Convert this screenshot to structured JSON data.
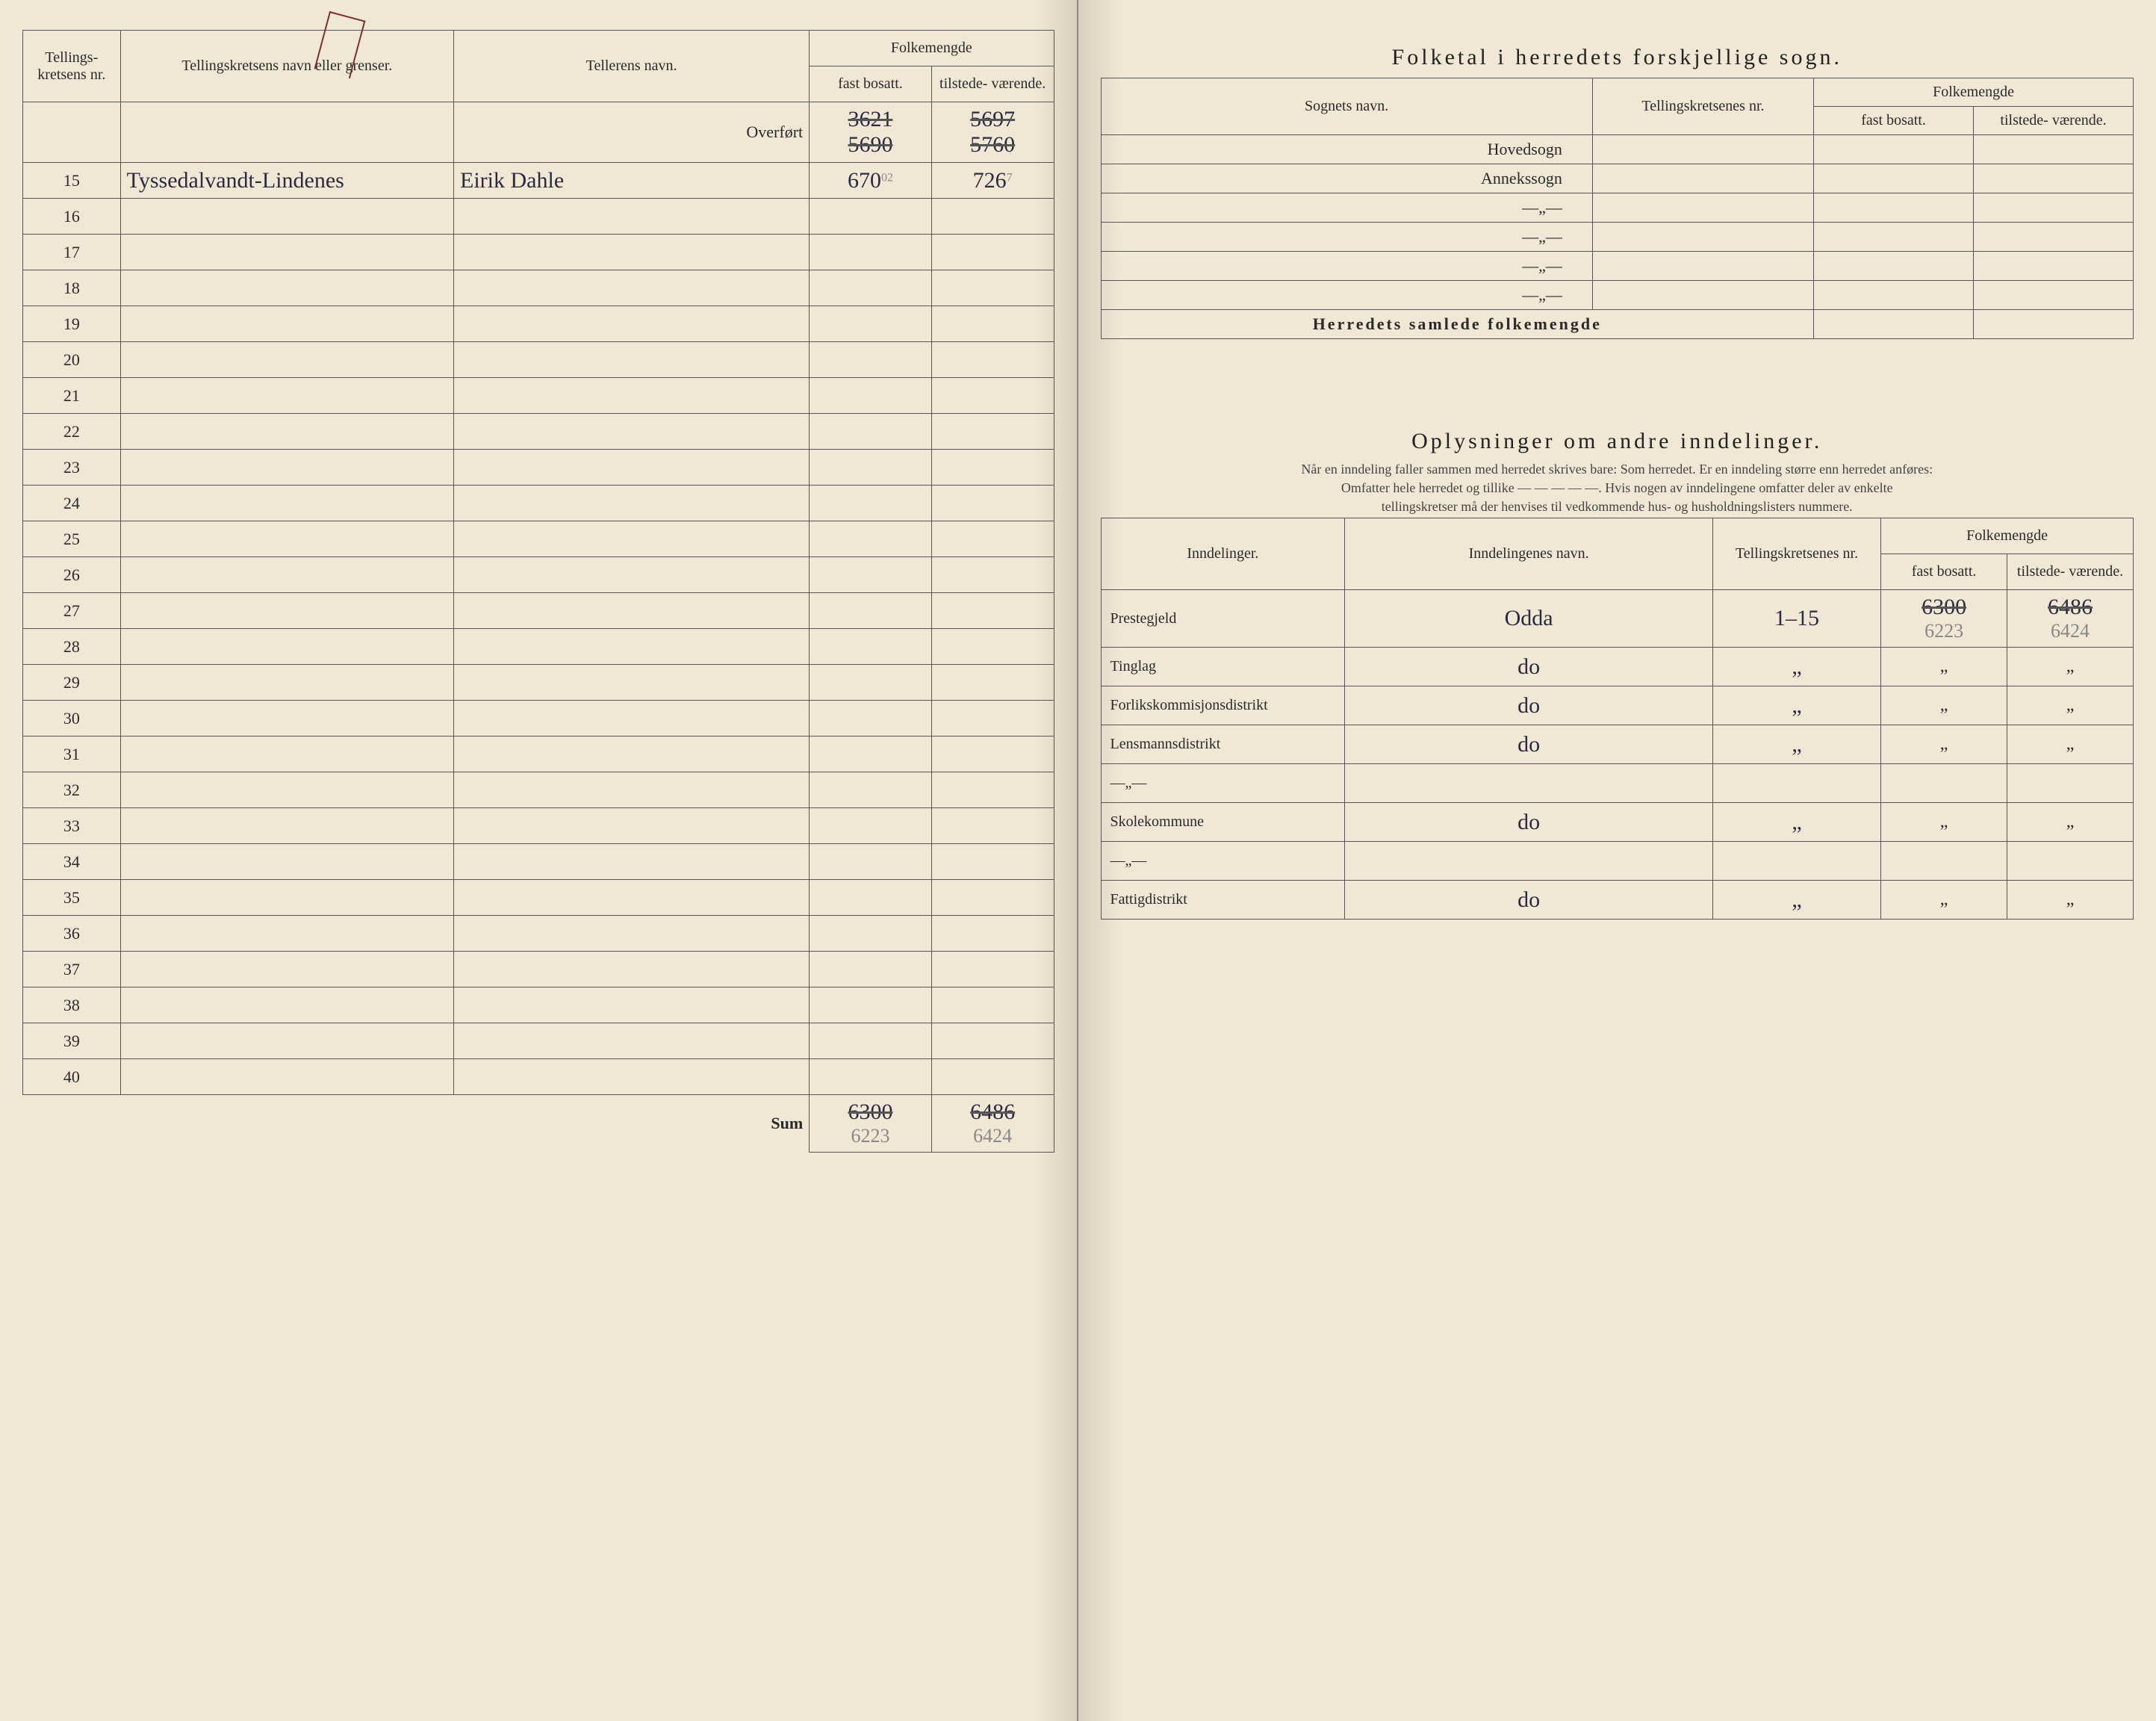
{
  "leftPage": {
    "headers": {
      "nr": "Tellings-\nkretsens\nnr.",
      "navn": "Tellingskretsens navn eller grenser.",
      "teller": "Tellerens navn.",
      "folkemengde": "Folkemengde",
      "fast": "fast\nbosatt.",
      "tilstede": "tilstede-\nværende."
    },
    "overfort": "Overført",
    "overfortFastStrike": "3621",
    "overfortFastAlt": "5690",
    "overfortTilStrike": "5697",
    "overfortTilAlt": "5760",
    "rows": [
      {
        "nr": "15",
        "navn": "Tyssedalvandt-Lindenes",
        "teller": "Eirik Dahle",
        "fast": "670",
        "fastAnnot": "02",
        "til": "726",
        "tilAnnot": "7"
      },
      {
        "nr": "16"
      },
      {
        "nr": "17"
      },
      {
        "nr": "18"
      },
      {
        "nr": "19"
      },
      {
        "nr": "20"
      },
      {
        "nr": "21"
      },
      {
        "nr": "22"
      },
      {
        "nr": "23"
      },
      {
        "nr": "24"
      },
      {
        "nr": "25"
      },
      {
        "nr": "26"
      },
      {
        "nr": "27"
      },
      {
        "nr": "28"
      },
      {
        "nr": "29"
      },
      {
        "nr": "30"
      },
      {
        "nr": "31"
      },
      {
        "nr": "32"
      },
      {
        "nr": "33"
      },
      {
        "nr": "34"
      },
      {
        "nr": "35"
      },
      {
        "nr": "36"
      },
      {
        "nr": "37"
      },
      {
        "nr": "38"
      },
      {
        "nr": "39"
      },
      {
        "nr": "40"
      }
    ],
    "sum": "Sum",
    "sumFastStrike": "6300",
    "sumFastNew": "6223",
    "sumTilStrike": "6486",
    "sumTilNew": "6424"
  },
  "rightPage": {
    "sognTitle": "Folketal i herredets forskjellige sogn.",
    "sognHeaders": {
      "navn": "Sognets navn.",
      "kret": "Tellingskretsenes\nnr.",
      "folkemengde": "Folkemengde",
      "fast": "fast\nbosatt.",
      "tilstede": "tilstede-\nværende."
    },
    "sognRows": [
      {
        "label": "Hovedsogn"
      },
      {
        "label": "Annekssogn"
      },
      {
        "label": "—„—"
      },
      {
        "label": "—„—"
      },
      {
        "label": "—„—"
      },
      {
        "label": "—„—"
      }
    ],
    "samlede": "Herredets samlede folkemengde",
    "inndTitle": "Oplysninger om andre inndelinger.",
    "inndSub1": "Når en inndeling faller sammen med herredet skrives bare: Som herredet. Er en inndeling større enn herredet anføres:",
    "inndSub2": "Omfatter hele herredet og tillike — — — — —. Hvis nogen av inndelingene omfatter deler av enkelte",
    "inndSub3": "tellingskretser må der henvises til vedkommende hus- og husholdningslisters nummere.",
    "inndHeaders": {
      "ind": "Inndelinger.",
      "navn": "Inndelingenes navn.",
      "kret": "Tellingskretsenes\nnr.",
      "folkemengde": "Folkemengde",
      "fast": "fast\nbosatt.",
      "tilstede": "tilstede-\nværende."
    },
    "inndRows": [
      {
        "label": "Prestegjeld",
        "navn": "Odda",
        "kret": "1–15",
        "fastStrike": "6300",
        "fastNew": "6223",
        "tilStrike": "6486",
        "tilNew": "6424"
      },
      {
        "label": "Tinglag",
        "navn": "do",
        "kret": "„",
        "fast": "„",
        "til": "„"
      },
      {
        "label": "Forlikskommisjonsdistrikt",
        "navn": "do",
        "kret": "„",
        "fast": "„",
        "til": "„"
      },
      {
        "label": "Lensmannsdistrikt",
        "navn": "do",
        "kret": "„",
        "fast": "„",
        "til": "„"
      },
      {
        "label": "—„—"
      },
      {
        "label": "Skolekommune",
        "navn": "do",
        "kret": "„",
        "fast": "„",
        "til": "„"
      },
      {
        "label": "—„—"
      },
      {
        "label": "Fattigdistrikt",
        "navn": "do",
        "kret": "„",
        "fast": "„",
        "til": "„"
      }
    ]
  },
  "colors": {
    "paper": "#f0e8d4",
    "ink": "#2a2a2a",
    "handwriting": "#2a2a40",
    "pencil": "#888888",
    "border": "#555555"
  }
}
